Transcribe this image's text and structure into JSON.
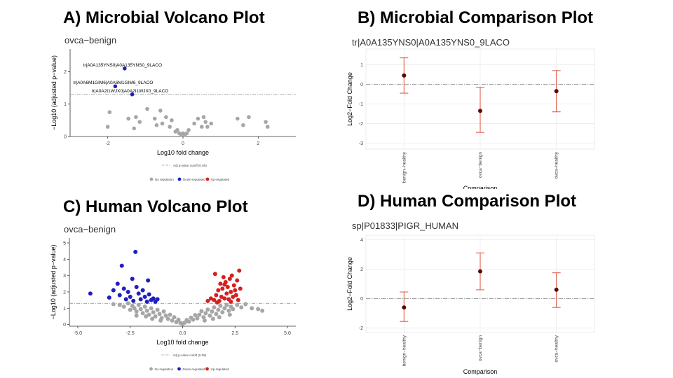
{
  "panels": [
    {
      "id": "A",
      "title": "A) Microbial Volcano Plot",
      "chart_data": {
        "type": "scatter",
        "subtitle": "ovca−benign",
        "xlabel": "Log10 fold change",
        "ylabel": "−Log10 (adjusted p−value)",
        "xlim": [
          -3,
          3
        ],
        "ylim": [
          0,
          2.7
        ],
        "xticks": [
          -2,
          0,
          2
        ],
        "yticks": [
          0,
          1,
          2
        ],
        "cutoff": 1.3,
        "series": [
          {
            "name": "No regulation",
            "color": "#a6a6a6",
            "points": [
              [
                -2.0,
                0.3
              ],
              [
                -1.95,
                0.75
              ],
              [
                -1.45,
                0.55
              ],
              [
                -1.3,
                0.25
              ],
              [
                -1.25,
                0.6
              ],
              [
                -1.15,
                0.45
              ],
              [
                -0.95,
                0.85
              ],
              [
                -0.75,
                0.55
              ],
              [
                -0.7,
                0.35
              ],
              [
                -0.6,
                0.8
              ],
              [
                -0.55,
                0.4
              ],
              [
                -0.45,
                0.6
              ],
              [
                -0.35,
                0.3
              ],
              [
                -0.3,
                0.5
              ],
              [
                -0.2,
                0.15
              ],
              [
                -0.15,
                0.2
              ],
              [
                -0.1,
                0.1
              ],
              [
                -0.05,
                0.05
              ],
              [
                0.0,
                0.1
              ],
              [
                0.05,
                0.05
              ],
              [
                0.1,
                0.1
              ],
              [
                0.15,
                0.2
              ],
              [
                0.3,
                0.4
              ],
              [
                0.4,
                0.55
              ],
              [
                0.5,
                0.3
              ],
              [
                0.55,
                0.6
              ],
              [
                0.6,
                0.45
              ],
              [
                0.65,
                0.3
              ],
              [
                0.75,
                0.4
              ],
              [
                1.45,
                0.55
              ],
              [
                1.6,
                0.35
              ],
              [
                1.75,
                0.6
              ],
              [
                2.2,
                0.45
              ],
              [
                2.25,
                0.3
              ]
            ]
          },
          {
            "name": "Down-regulated",
            "color": "#1f1fbf",
            "points": [
              [
                -1.55,
                2.1
              ],
              [
                -1.8,
                1.55
              ],
              [
                -1.35,
                1.3
              ]
            ]
          },
          {
            "name": "Up-regulated",
            "color": "#d62020",
            "points": []
          }
        ],
        "annotations": [
          {
            "text": "tr|A0A135YNS0|A0A135YNS0_9LACO",
            "x": -1.55,
            "y": 2.1
          },
          {
            "text": "tr|A0A6M1GIM6|A0A6M1GIM6_9LACO",
            "x": -1.8,
            "y": 1.55
          },
          {
            "text": "tr|A0A2I1WJX0|A0A2I1WJX0_9LACO",
            "x": -1.35,
            "y": 1.3
          }
        ],
        "cutoff_label": "Adj p-value cutoff (0.05)",
        "legend": [
          "No regulation",
          "Down-regulated",
          "Up-regulated"
        ]
      }
    },
    {
      "id": "B",
      "title": "B) Microbial Comparison Plot",
      "chart_data": {
        "type": "scatter",
        "subtitle": "tr|A0A135YNS0|A0A135YNS0_9LACO",
        "xlabel": "Comparison",
        "ylabel": "Log2−Fold Change",
        "categories": [
          "benign−healthy",
          "ovca−benign",
          "ovca−healthy"
        ],
        "ylim": [
          -3.3,
          1.8
        ],
        "yticks": [
          -3,
          -2,
          -1,
          0,
          1
        ],
        "reference_line": 0,
        "points": [
          {
            "category": "benign−healthy",
            "value": 0.45,
            "low": -0.45,
            "high": 1.35
          },
          {
            "category": "ovca−benign",
            "value": -1.35,
            "low": -2.45,
            "high": -0.15
          },
          {
            "category": "ovca−healthy",
            "value": -0.35,
            "low": -1.4,
            "high": 0.7
          }
        ]
      }
    },
    {
      "id": "C",
      "title": "C) Human Volcano Plot",
      "chart_data": {
        "type": "scatter",
        "subtitle": "ovca−benign",
        "xlabel": "Log10 fold change",
        "ylabel": "−Log10 (adjusted p−value)",
        "xlim": [
          -5.4,
          5.4
        ],
        "ylim": [
          -0.1,
          5.3
        ],
        "xticks": [
          -5.0,
          -2.5,
          0.0,
          2.5,
          5.0
        ],
        "xtick_labels": [
          "-5.0",
          "-2.5",
          "0.0",
          "2.5",
          "5.0"
        ],
        "yticks": [
          0,
          1,
          2,
          3,
          4,
          5
        ],
        "cutoff": 1.3,
        "series": [
          {
            "name": "No regulation",
            "color": "#a6a6a6",
            "points": [
              [
                -3.3,
                1.25
              ],
              [
                -3.0,
                1.2
              ],
              [
                -2.8,
                1.1
              ],
              [
                -2.6,
                1.3
              ],
              [
                -2.5,
                0.9
              ],
              [
                -2.4,
                1.15
              ],
              [
                -2.3,
                1.0
              ],
              [
                -2.2,
                0.8
              ],
              [
                -2.1,
                1.2
              ],
              [
                -2.0,
                0.95
              ],
              [
                -1.9,
                0.7
              ],
              [
                -1.8,
                1.1
              ],
              [
                -1.7,
                0.85
              ],
              [
                -1.6,
                0.6
              ],
              [
                -1.5,
                1.0
              ],
              [
                -1.4,
                0.75
              ],
              [
                -1.3,
                0.5
              ],
              [
                -1.2,
                0.9
              ],
              [
                -1.1,
                0.65
              ],
              [
                -1.0,
                0.4
              ],
              [
                -0.9,
                0.8
              ],
              [
                -0.8,
                0.55
              ],
              [
                -0.7,
                0.35
              ],
              [
                -0.6,
                0.6
              ],
              [
                -0.5,
                0.25
              ],
              [
                -0.4,
                0.45
              ],
              [
                -0.3,
                0.15
              ],
              [
                -0.2,
                0.3
              ],
              [
                -0.1,
                0.1
              ],
              [
                0.0,
                0.05
              ],
              [
                0.1,
                0.12
              ],
              [
                0.2,
                0.28
              ],
              [
                0.3,
                0.18
              ],
              [
                0.4,
                0.42
              ],
              [
                0.5,
                0.3
              ],
              [
                0.6,
                0.58
              ],
              [
                0.7,
                0.38
              ],
              [
                0.8,
                0.6
              ],
              [
                0.9,
                0.82
              ],
              [
                1.0,
                0.45
              ],
              [
                1.1,
                0.7
              ],
              [
                1.2,
                0.92
              ],
              [
                1.3,
                0.55
              ],
              [
                1.4,
                0.8
              ],
              [
                1.5,
                1.05
              ],
              [
                1.6,
                0.65
              ],
              [
                1.7,
                0.9
              ],
              [
                1.8,
                1.15
              ],
              [
                1.9,
                0.75
              ],
              [
                2.0,
                1.0
              ],
              [
                2.1,
                1.2
              ],
              [
                2.2,
                0.85
              ],
              [
                2.3,
                1.1
              ],
              [
                2.4,
                0.95
              ],
              [
                2.6,
                1.2
              ],
              [
                2.8,
                1.05
              ],
              [
                3.0,
                1.25
              ],
              [
                3.3,
                1.0
              ],
              [
                3.6,
                0.95
              ],
              [
                3.8,
                0.85
              ],
              [
                -1.75,
                0.5
              ],
              [
                -1.45,
                0.35
              ],
              [
                -1.05,
                0.25
              ],
              [
                1.05,
                0.25
              ],
              [
                1.45,
                0.35
              ],
              [
                1.75,
                0.45
              ],
              [
                -2.2,
                0.55
              ],
              [
                2.25,
                0.6
              ]
            ]
          },
          {
            "name": "Down-regulated",
            "color": "#1f1fbf",
            "points": [
              [
                -4.4,
                1.9
              ],
              [
                -3.5,
                1.65
              ],
              [
                -3.3,
                2.1
              ],
              [
                -3.1,
                2.5
              ],
              [
                -3.0,
                1.8
              ],
              [
                -2.9,
                3.6
              ],
              [
                -2.8,
                2.2
              ],
              [
                -2.7,
                1.55
              ],
              [
                -2.6,
                2.0
              ],
              [
                -2.5,
                1.7
              ],
              [
                -2.4,
                2.8
              ],
              [
                -2.35,
                1.45
              ],
              [
                -2.25,
                4.45
              ],
              [
                -2.2,
                2.3
              ],
              [
                -2.1,
                1.9
              ],
              [
                -2.0,
                1.55
              ],
              [
                -1.9,
                2.1
              ],
              [
                -1.8,
                1.7
              ],
              [
                -1.7,
                1.4
              ],
              [
                -1.65,
                2.7
              ],
              [
                -1.6,
                1.85
              ],
              [
                -1.5,
                1.5
              ],
              [
                -1.4,
                1.6
              ],
              [
                -1.3,
                1.4
              ],
              [
                -1.2,
                1.55
              ]
            ]
          },
          {
            "name": "Up-regulated",
            "color": "#d62020",
            "points": [
              [
                1.2,
                1.45
              ],
              [
                1.35,
                1.6
              ],
              [
                1.5,
                1.5
              ],
              [
                1.55,
                3.1
              ],
              [
                1.6,
                1.8
              ],
              [
                1.7,
                2.1
              ],
              [
                1.75,
                1.45
              ],
              [
                1.8,
                2.5
              ],
              [
                1.85,
                1.7
              ],
              [
                1.9,
                2.2
              ],
              [
                1.95,
                2.9
              ],
              [
                2.0,
                1.6
              ],
              [
                2.05,
                2.6
              ],
              [
                2.1,
                1.9
              ],
              [
                2.15,
                2.3
              ],
              [
                2.2,
                1.55
              ],
              [
                2.25,
                2.8
              ],
              [
                2.3,
                2.0
              ],
              [
                2.35,
                3.0
              ],
              [
                2.4,
                1.7
              ],
              [
                2.45,
                2.4
              ],
              [
                2.5,
                2.1
              ],
              [
                2.55,
                1.8
              ],
              [
                2.6,
                2.7
              ],
              [
                2.65,
                1.5
              ],
              [
                2.7,
                3.3
              ],
              [
                2.75,
                2.2
              ],
              [
                2.3,
                1.4
              ],
              [
                1.65,
                1.35
              ],
              [
                2.0,
                2.45
              ]
            ]
          }
        ],
        "cutoff_label": "Adj p-value cutoff (0.05)",
        "legend": [
          "No regulation",
          "Down-regulated",
          "Up-regulated"
        ]
      }
    },
    {
      "id": "D",
      "title": "D) Human Comparison Plot",
      "chart_data": {
        "type": "scatter",
        "subtitle": "sp|P01833|PIGR_HUMAN",
        "xlabel": "Comparison",
        "ylabel": "Log2−Fold Change",
        "categories": [
          "benign−healthy",
          "ovca−benign",
          "ovca−healthy"
        ],
        "ylim": [
          -2.3,
          4.3
        ],
        "yticks": [
          -2,
          0,
          2,
          4
        ],
        "reference_line": 0,
        "points": [
          {
            "category": "benign−healthy",
            "value": -0.6,
            "low": -1.55,
            "high": 0.45
          },
          {
            "category": "ovca−benign",
            "value": 1.85,
            "low": 0.6,
            "high": 3.1
          },
          {
            "category": "ovca−healthy",
            "value": 0.6,
            "low": -0.6,
            "high": 1.75
          }
        ]
      }
    }
  ]
}
